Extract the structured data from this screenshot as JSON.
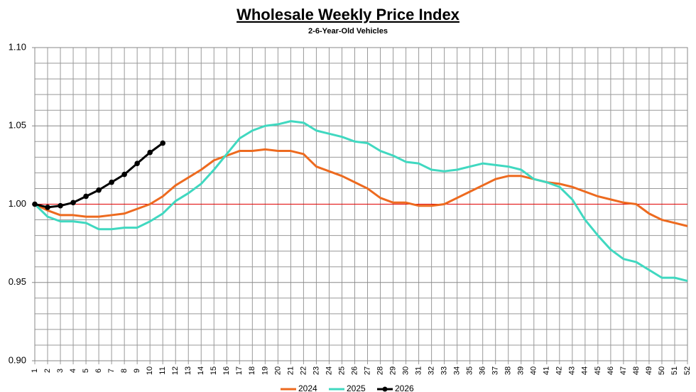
{
  "chart_data": {
    "type": "line",
    "title": "Wholesale Weekly Price Index",
    "subtitle": "2-6-Year-Old Vehicles",
    "x": [
      1,
      2,
      3,
      4,
      5,
      6,
      7,
      8,
      9,
      10,
      11,
      12,
      13,
      14,
      15,
      16,
      17,
      18,
      19,
      20,
      21,
      22,
      23,
      24,
      25,
      26,
      27,
      28,
      29,
      30,
      31,
      32,
      33,
      34,
      35,
      36,
      37,
      38,
      39,
      40,
      41,
      42,
      43,
      44,
      45,
      46,
      47,
      48,
      49,
      50,
      51,
      52
    ],
    "xlim": [
      1,
      52
    ],
    "ylim": [
      0.9,
      1.1
    ],
    "yticks": [
      {
        "value": 0.9,
        "label": "0.90"
      },
      0.95,
      {
        "value": 1,
        "label": "1.00"
      },
      1.05,
      {
        "value": 1.1,
        "label": "1.10"
      }
    ],
    "yminor": [
      0.91,
      0.92,
      0.93,
      0.94,
      0.96,
      0.97,
      0.98,
      0.99,
      1.01,
      1.02,
      1.03,
      1.04,
      1.06,
      1.07,
      1.08,
      1.09
    ],
    "grid": true,
    "reference_line": {
      "value": 1,
      "color": "#e00000"
    },
    "legend": "bottom",
    "series": [
      {
        "name": "2024",
        "color": "#ed6a1f",
        "markers": false,
        "values": [
          1.0,
          0.996,
          0.993,
          0.993,
          0.992,
          0.992,
          0.993,
          0.994,
          0.997,
          1.0,
          1.005,
          1.012,
          1.017,
          1.022,
          1.028,
          1.031,
          1.034,
          1.034,
          1.035,
          1.034,
          1.034,
          1.032,
          1.024,
          1.021,
          1.018,
          1.014,
          1.01,
          1.004,
          1.001,
          1.001,
          0.999,
          0.999,
          1.0,
          1.004,
          1.008,
          1.012,
          1.016,
          1.018,
          1.018,
          1.016,
          1.014,
          1.013,
          1.011,
          1.008,
          1.005,
          1.003,
          1.001,
          1.0,
          0.994,
          0.99,
          0.988,
          0.986
        ]
      },
      {
        "name": "2025",
        "color": "#40d8c0",
        "markers": false,
        "values": [
          1.0,
          0.992,
          0.989,
          0.989,
          0.988,
          0.984,
          0.984,
          0.985,
          0.985,
          0.989,
          0.994,
          1.002,
          1.007,
          1.013,
          1.022,
          1.032,
          1.042,
          1.047,
          1.05,
          1.051,
          1.053,
          1.052,
          1.047,
          1.045,
          1.043,
          1.04,
          1.039,
          1.034,
          1.031,
          1.027,
          1.026,
          1.022,
          1.021,
          1.022,
          1.024,
          1.026,
          1.025,
          1.024,
          1.022,
          1.016,
          1.014,
          1.011,
          1.003,
          0.99,
          0.98,
          0.971,
          0.965,
          0.963,
          0.958,
          0.953,
          0.953,
          0.951
        ]
      },
      {
        "name": "2026",
        "color": "#000000",
        "markers": true,
        "values": [
          1.0,
          0.998,
          0.999,
          1.001,
          1.005,
          1.009,
          1.014,
          1.019,
          1.026,
          1.033,
          1.039,
          null,
          null,
          null,
          null,
          null,
          null,
          null,
          null,
          null,
          null,
          null,
          null,
          null,
          null,
          null,
          null,
          null,
          null,
          null,
          null,
          null,
          null,
          null,
          null,
          null,
          null,
          null,
          null,
          null,
          null,
          null,
          null,
          null,
          null,
          null,
          null,
          null,
          null,
          null,
          null,
          null
        ]
      }
    ]
  }
}
